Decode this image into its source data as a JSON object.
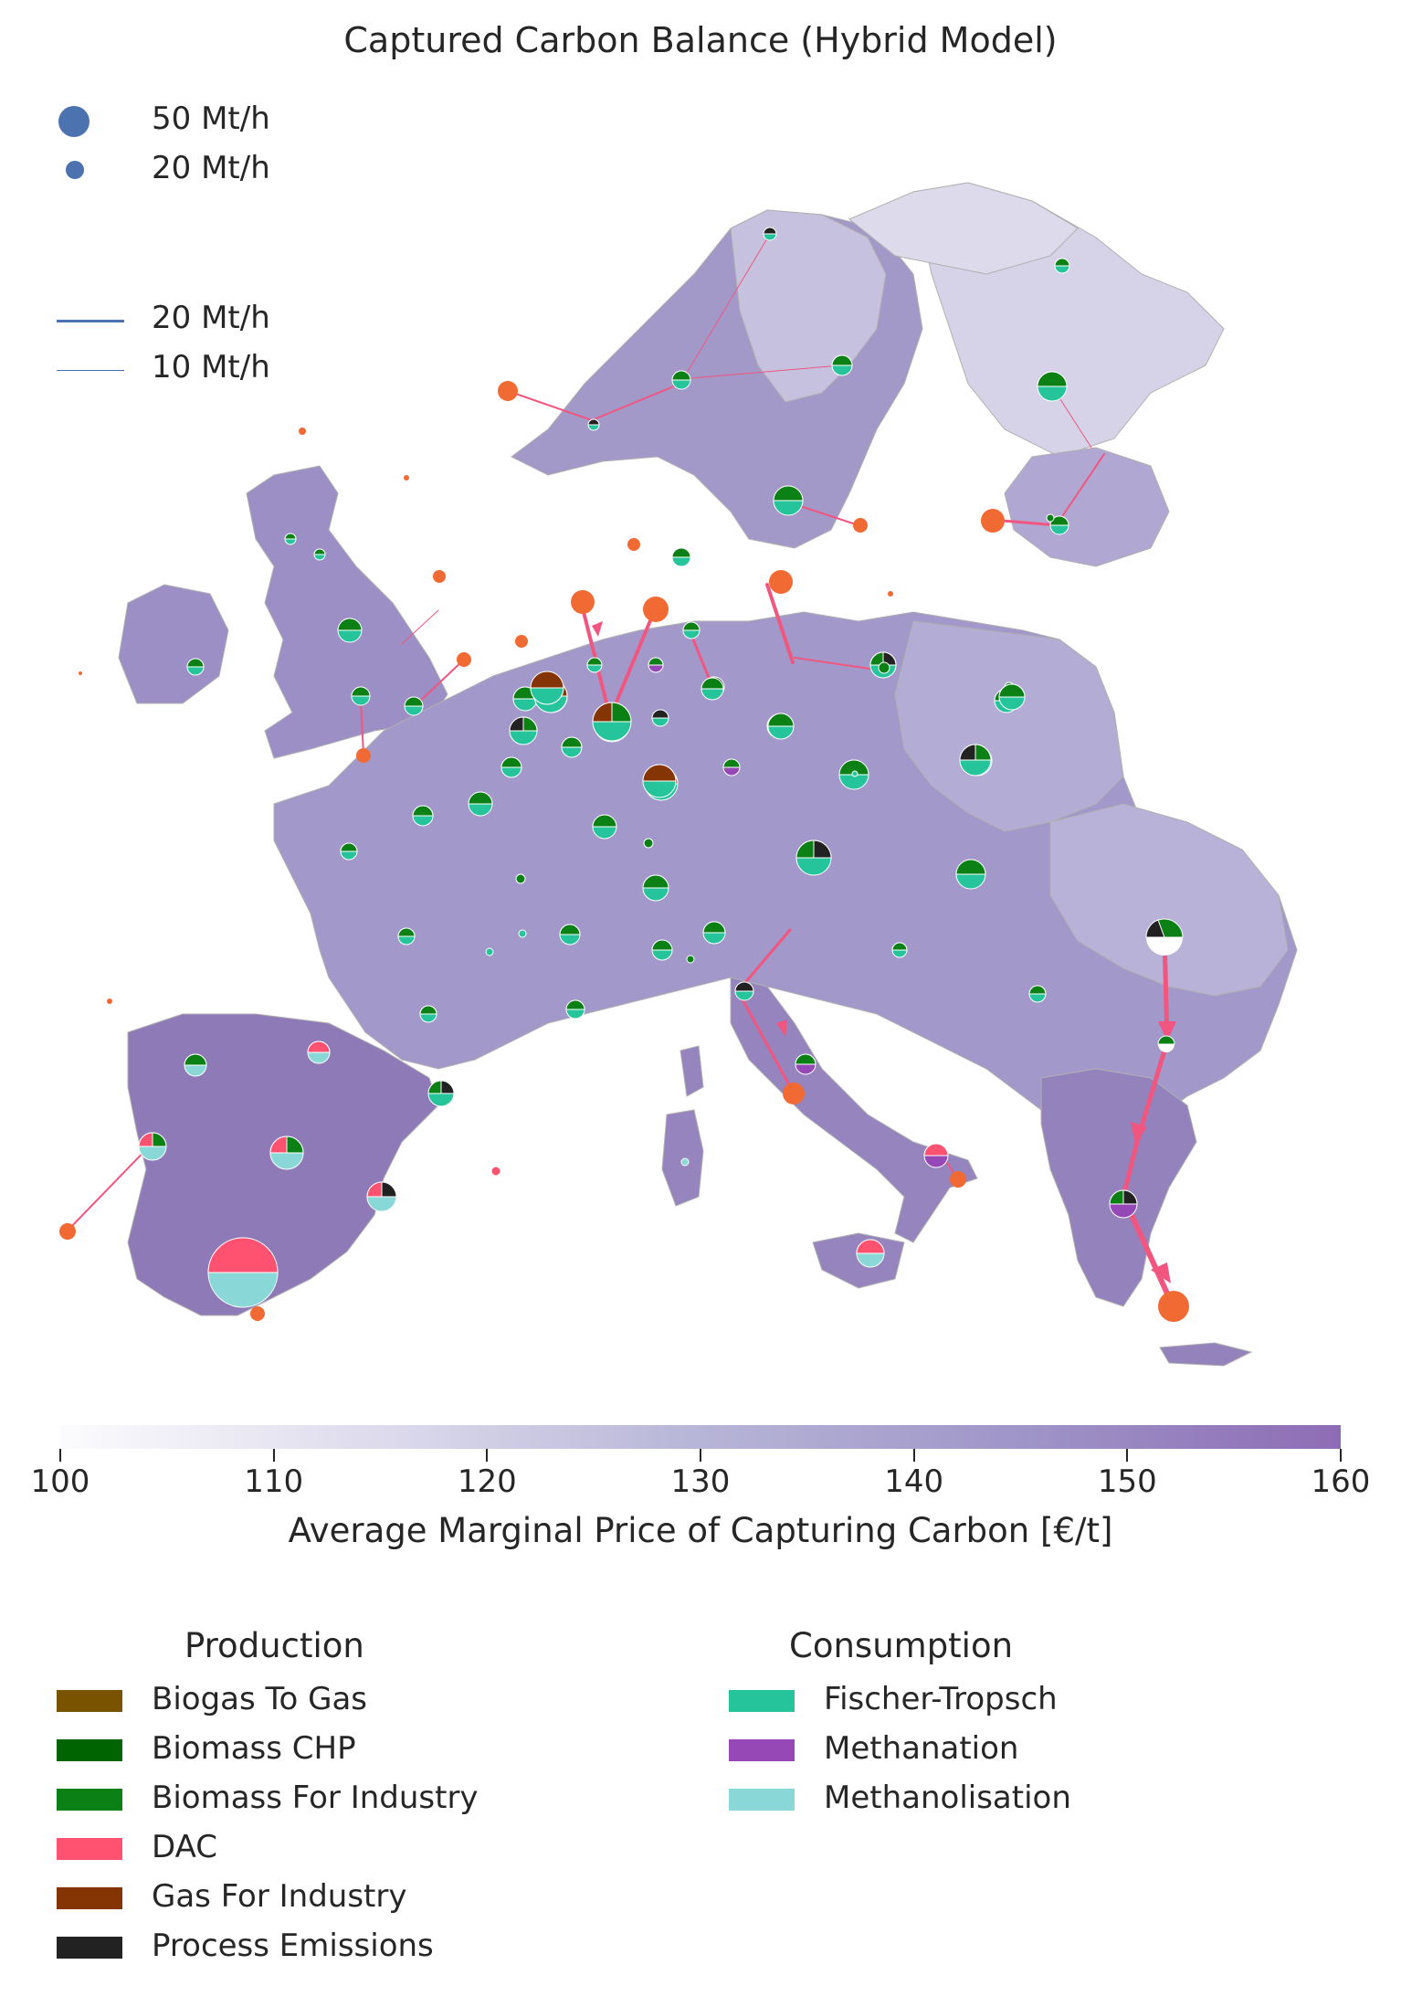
{
  "title": "Captured Carbon Balance (Hybrid Model)",
  "size_legend": [
    {
      "label": "50 Mt/h",
      "value": 50
    },
    {
      "label": "20 Mt/h",
      "value": 20
    }
  ],
  "line_legend": [
    {
      "label": "20 Mt/h",
      "value": 20
    },
    {
      "label": "10 Mt/h",
      "value": 10
    }
  ],
  "colorbar": {
    "label": "Average Marginal Price of Capturing Carbon [€/t]",
    "ticks": [
      "100",
      "110",
      "120",
      "130",
      "140",
      "150",
      "160"
    ],
    "range": [
      100,
      160
    ],
    "colors": [
      "#fcfbfd",
      "#dddbec",
      "#b7b5d7",
      "#9f95c8",
      "#8e6cb5"
    ]
  },
  "colors": {
    "land": "#9c90c6",
    "north_land": "#c5c1de",
    "far_north_land": "#dcdaeb",
    "flow": "#f0567f",
    "store": "#f26a33",
    "legend_blue": "#4c72b0"
  },
  "production": {
    "title": "Production",
    "items": [
      {
        "label": "Biogas To Gas",
        "color": "#7a5300"
      },
      {
        "label": "Biomass CHP",
        "color": "#006400"
      },
      {
        "label": "Biomass For Industry",
        "color": "#0b8015"
      },
      {
        "label": "DAC",
        "color": "#ff5270"
      },
      {
        "label": "Gas For Industry",
        "color": "#853403"
      },
      {
        "label": "Process Emissions",
        "color": "#222222"
      }
    ]
  },
  "consumption": {
    "title": "Consumption",
    "items": [
      {
        "label": "Fischer-Tropsch",
        "color": "#25c49a"
      },
      {
        "label": "Methanation",
        "color": "#9649b6"
      },
      {
        "label": "Methanolisation",
        "color": "#89d7d6"
      }
    ]
  }
}
